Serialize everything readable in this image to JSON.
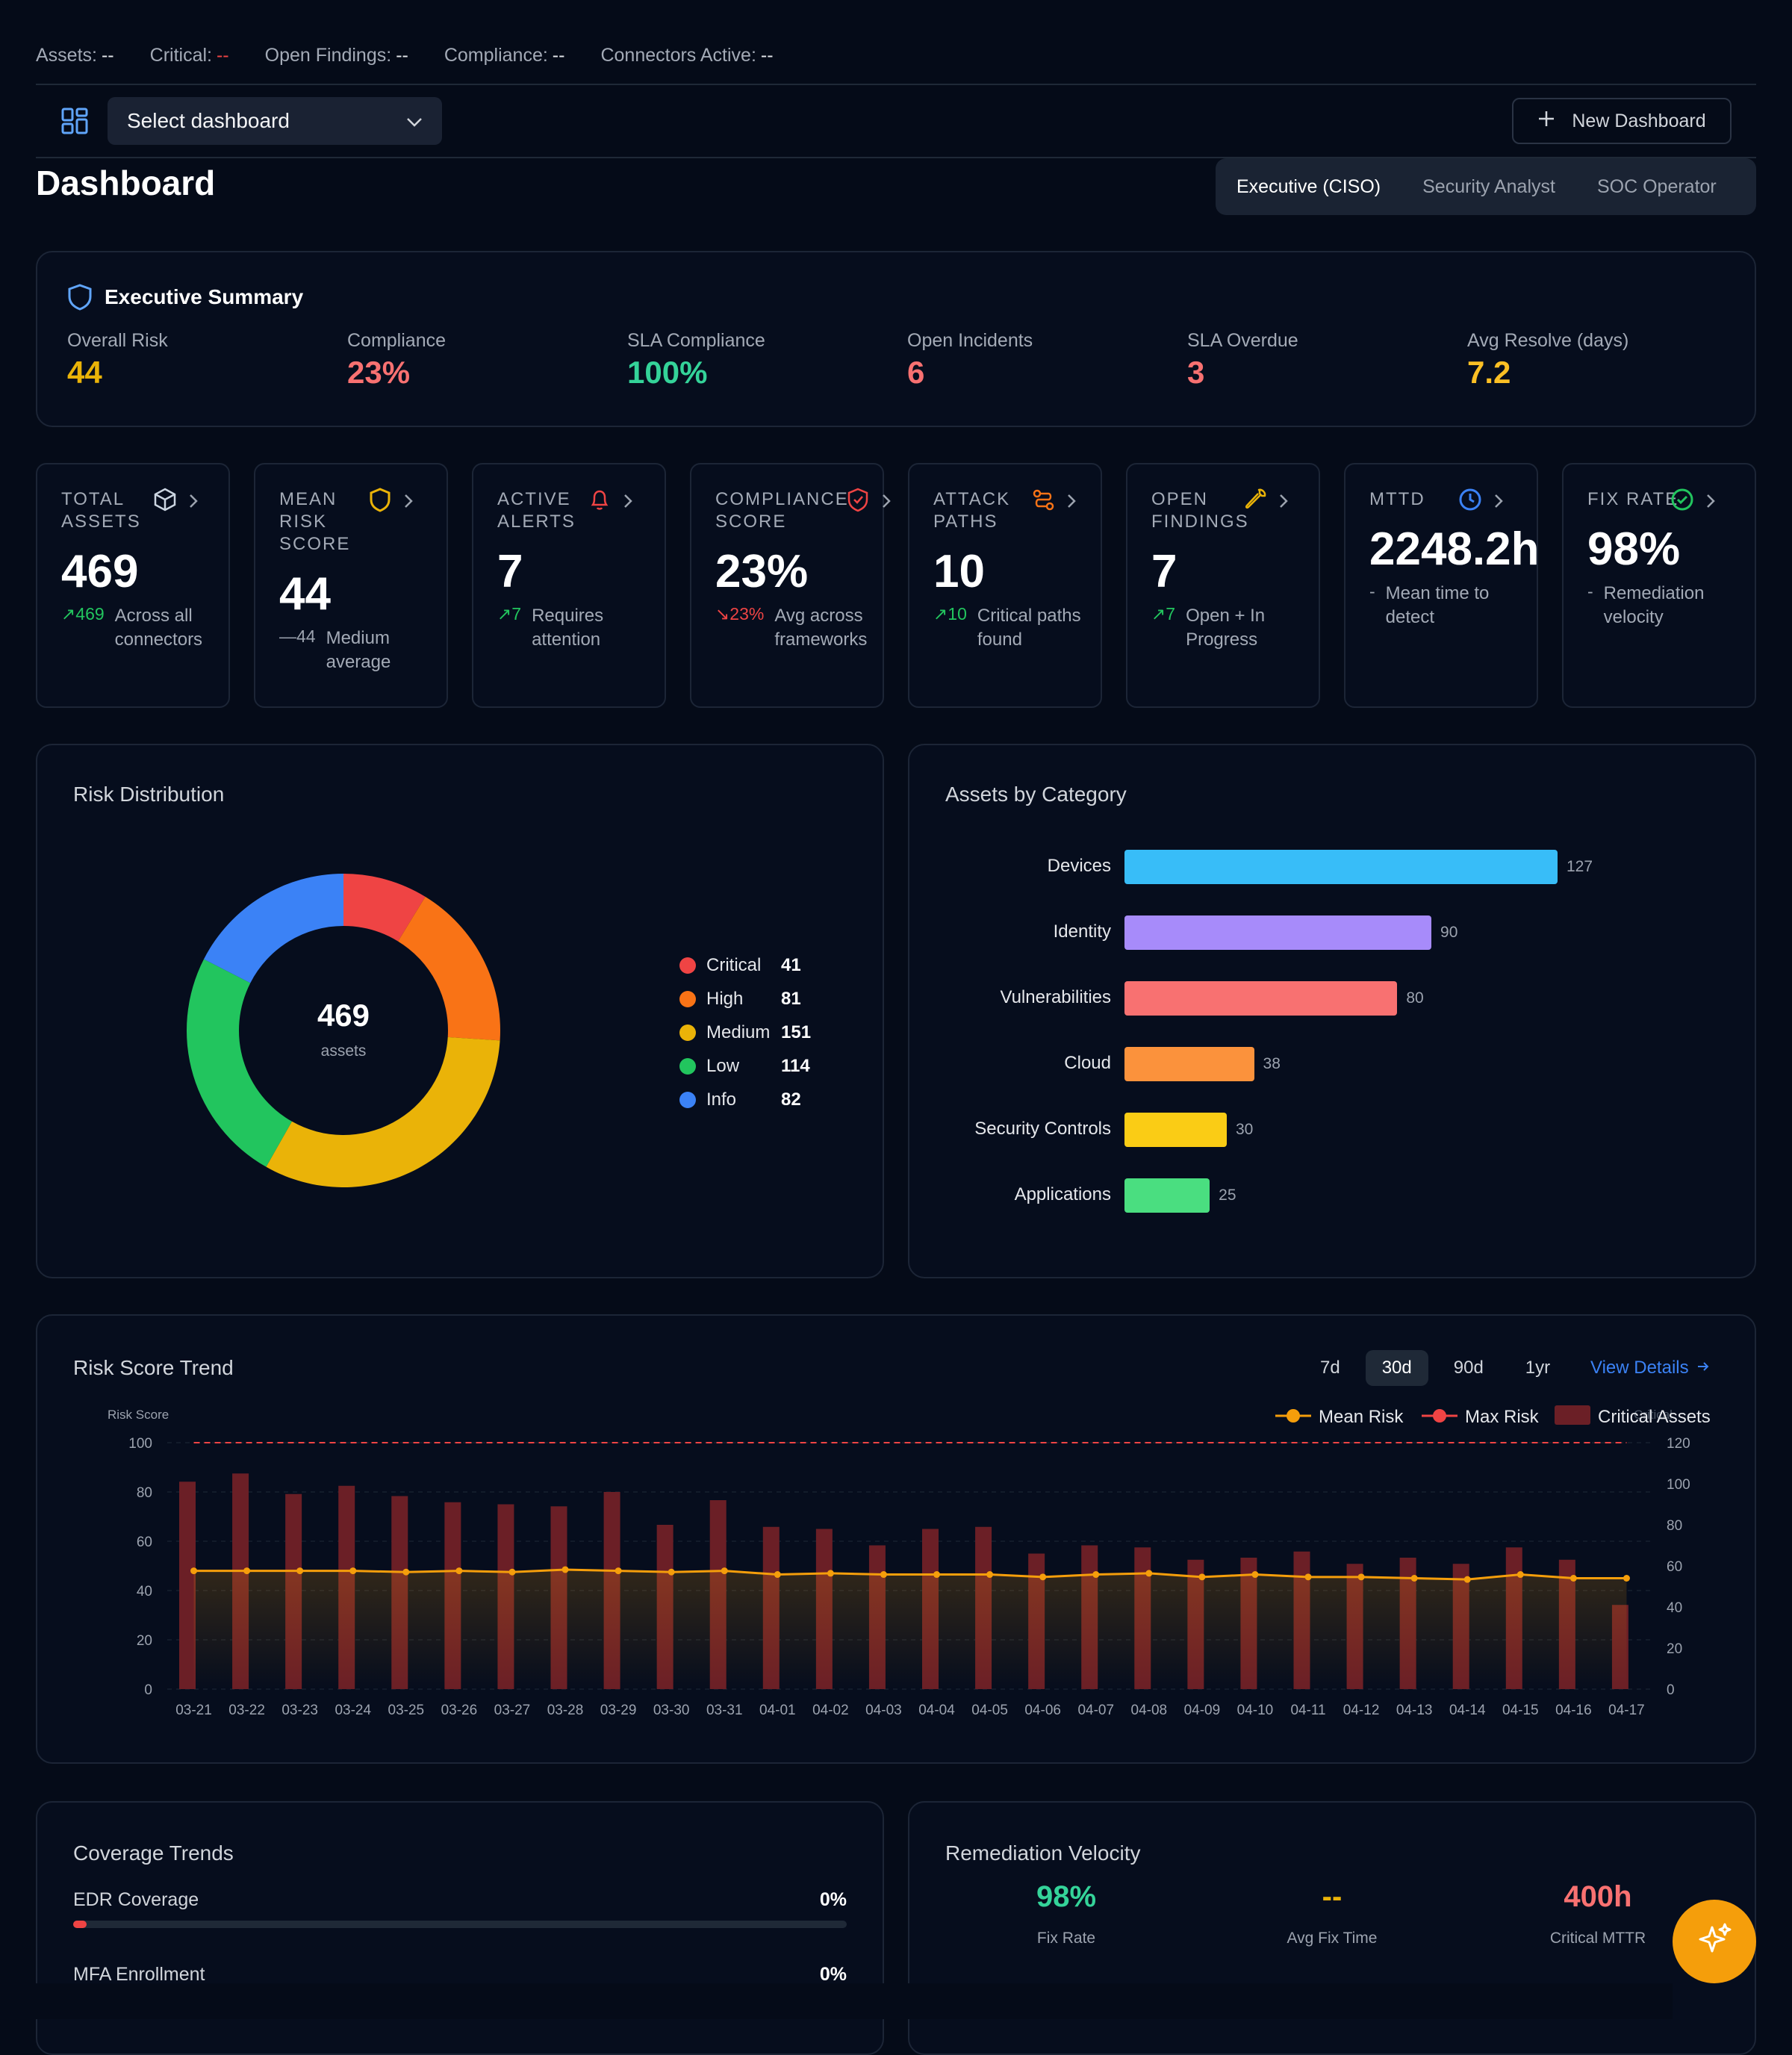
{
  "status_bar": {
    "assets_label": "Assets:",
    "assets_value": "--",
    "critical_label": "Critical:",
    "critical_value": "--",
    "open_findings_label": "Open Findings:",
    "open_findings_value": "--",
    "compliance_label": "Compliance:",
    "compliance_value": "--",
    "connectors_label": "Connectors Active:",
    "connectors_value": "--"
  },
  "toolbar": {
    "select_placeholder": "Select dashboard",
    "new_dashboard_label": "New Dashboard"
  },
  "page": {
    "title": "Dashboard"
  },
  "roles": [
    {
      "label": "Executive (CISO)",
      "active": true
    },
    {
      "label": "Security Analyst",
      "active": false
    },
    {
      "label": "SOC Operator",
      "active": false
    }
  ],
  "executive_summary": {
    "title": "Executive Summary",
    "items": [
      {
        "label": "Overall Risk",
        "value": "44",
        "color": "#eab308"
      },
      {
        "label": "Compliance",
        "value": "23%",
        "color": "#f87171"
      },
      {
        "label": "SLA Compliance",
        "value": "100%",
        "color": "#34d399"
      },
      {
        "label": "Open Incidents",
        "value": "6",
        "color": "#f87171"
      },
      {
        "label": "SLA Overdue",
        "value": "3",
        "color": "#f87171"
      },
      {
        "label": "Avg Resolve (days)",
        "value": "7.2",
        "color": "#fbbf24"
      }
    ]
  },
  "kpis": [
    {
      "label": "TOTAL ASSETS",
      "value": "469",
      "delta": "469",
      "delta_dir": "up",
      "desc": "Across all connectors",
      "icon": "cube-icon"
    },
    {
      "label": "MEAN RISK SCORE",
      "value": "44",
      "delta": "44",
      "delta_dir": "flat",
      "desc": "Medium average",
      "icon": "shield-icon"
    },
    {
      "label": "ACTIVE ALERTS",
      "value": "7",
      "delta": "7",
      "delta_dir": "up",
      "desc": "Requires attention",
      "icon": "bell-icon"
    },
    {
      "label": "COMPLIANCE SCORE",
      "value": "23%",
      "delta": "23%",
      "delta_dir": "down",
      "desc": "Avg across frameworks",
      "icon": "shield-check-icon"
    },
    {
      "label": "ATTACK PATHS",
      "value": "10",
      "delta": "10",
      "delta_dir": "up",
      "desc": "Critical paths found",
      "icon": "route-icon"
    },
    {
      "label": "OPEN FINDINGS",
      "value": "7",
      "delta": "7",
      "delta_dir": "up",
      "desc": "Open + In Progress",
      "icon": "wrench-icon"
    },
    {
      "label": "MTTD",
      "value": "2248.2h",
      "delta": "-",
      "delta_dir": "none",
      "desc": "Mean time to detect",
      "icon": "clock-icon"
    },
    {
      "label": "FIX RATE",
      "value": "98%",
      "delta": "-",
      "delta_dir": "none",
      "desc": "Remediation velocity",
      "icon": "check-circle-icon"
    }
  ],
  "risk_distribution": {
    "title": "Risk Distribution",
    "center_value": "469",
    "center_label": "assets",
    "chart_data": {
      "type": "pie",
      "categories": [
        "Critical",
        "High",
        "Medium",
        "Low",
        "Info"
      ],
      "values": [
        41,
        81,
        151,
        114,
        82
      ],
      "colors": [
        "#ef4444",
        "#f97316",
        "#eab308",
        "#22c55e",
        "#3b82f6"
      ]
    }
  },
  "assets_by_category": {
    "title": "Assets by Category",
    "chart_data": {
      "type": "bar",
      "orientation": "horizontal",
      "categories": [
        "Devices",
        "Identity",
        "Vulnerabilities",
        "Cloud",
        "Security Controls",
        "Applications"
      ],
      "values": [
        127,
        90,
        80,
        38,
        30,
        25
      ],
      "colors": [
        "#38bdf8",
        "#a78bfa",
        "#f87171",
        "#fb923c",
        "#facc15",
        "#4ade80"
      ]
    }
  },
  "risk_trend": {
    "title": "Risk Score Trend",
    "ranges": [
      {
        "label": "7d",
        "active": false
      },
      {
        "label": "30d",
        "active": true
      },
      {
        "label": "90d",
        "active": false
      },
      {
        "label": "1yr",
        "active": false
      }
    ],
    "view_details": "View Details",
    "chart_data": {
      "type": "bar",
      "ylabel": "Risk Score",
      "y2label": "Critical",
      "ylim": [
        0,
        100
      ],
      "y2lim": [
        0,
        120
      ],
      "yticks": [
        0,
        20,
        40,
        60,
        80,
        100
      ],
      "y2ticks": [
        0,
        20,
        40,
        60,
        80,
        100,
        120
      ],
      "categories": [
        "03-21",
        "03-22",
        "03-23",
        "03-24",
        "03-25",
        "03-26",
        "03-27",
        "03-28",
        "03-29",
        "03-30",
        "03-31",
        "04-01",
        "04-02",
        "04-03",
        "04-04",
        "04-05",
        "04-06",
        "04-07",
        "04-08",
        "04-09",
        "04-10",
        "04-11",
        "04-12",
        "04-13",
        "04-14",
        "04-15",
        "04-16",
        "04-17"
      ],
      "series": [
        {
          "name": "Mean Risk",
          "kind": "line",
          "axis": "left",
          "color": "#f59e0b",
          "values": [
            48,
            48,
            48,
            48,
            47.5,
            48,
            47.5,
            48.5,
            48,
            47.5,
            48,
            46.5,
            47,
            46.5,
            46.5,
            46.5,
            45.5,
            46.5,
            47,
            45.5,
            46.5,
            45.5,
            45.5,
            45,
            44.5,
            46.5,
            45,
            45
          ]
        },
        {
          "name": "Max Risk",
          "kind": "line",
          "axis": "left",
          "color": "#ef4444",
          "style": "dashed",
          "values": [
            100,
            100,
            100,
            100,
            100,
            100,
            100,
            100,
            100,
            100,
            100,
            100,
            100,
            100,
            100,
            100,
            100,
            100,
            100,
            100,
            100,
            100,
            100,
            100,
            100,
            100,
            100,
            100
          ]
        },
        {
          "name": "Critical Assets",
          "kind": "bar",
          "axis": "right",
          "color": "#6b1f26",
          "values": [
            101,
            105,
            95,
            99,
            94,
            91,
            90,
            89,
            96,
            80,
            92,
            79,
            78,
            70,
            78,
            79,
            66,
            70,
            69,
            63,
            64,
            67,
            61,
            64,
            61,
            69,
            63,
            41
          ]
        }
      ]
    }
  },
  "coverage_trends": {
    "title": "Coverage Trends",
    "items": [
      {
        "label": "EDR Coverage",
        "value": "0%",
        "progress": 0
      },
      {
        "label": "MFA Enrollment",
        "value": "0%",
        "progress": 0
      }
    ]
  },
  "remediation_velocity": {
    "title": "Remediation Velocity",
    "items": [
      {
        "value": "98%",
        "label": "Fix Rate",
        "color": "#34d399"
      },
      {
        "value": "--",
        "label": "Avg Fix Time",
        "color": "#eab308"
      },
      {
        "value": "400h",
        "label": "Critical MTTR",
        "color": "#f87171"
      }
    ]
  },
  "assistant": {
    "icon": "sparkle-icon"
  }
}
